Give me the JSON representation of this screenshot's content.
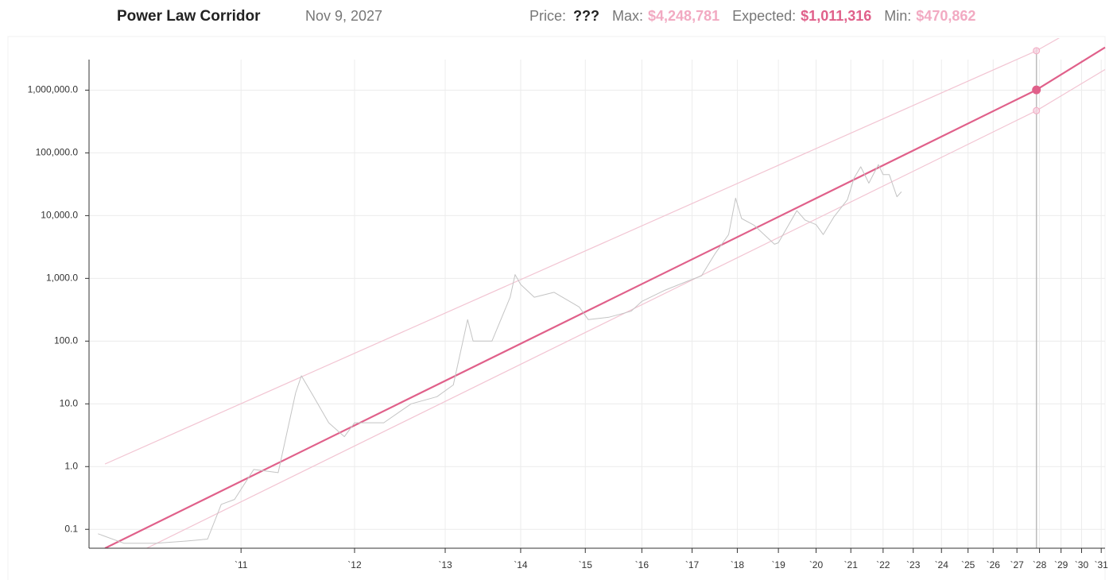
{
  "chart_data": {
    "type": "line",
    "title": "Power Law Corridor",
    "date": "Nov 9, 2027",
    "price_label": "Price:",
    "price": "???",
    "markers": {
      "x": 2027.86,
      "labels": [
        "Max:",
        "Expected:",
        "Min:"
      ],
      "values": [
        4248781,
        1011316,
        470862
      ],
      "value_labels": [
        "$4,248,781",
        "$1,011,316",
        "$470,862"
      ],
      "colors": [
        "#f2aac2",
        "#e0608a",
        "#f2aac2"
      ]
    },
    "xscale": "log-time",
    "yscale": "log",
    "grid": true,
    "xlim": [
      2010.0,
      2031.2
    ],
    "ylim": [
      0.05,
      5500000
    ],
    "xticks": [
      {
        "value": 2011,
        "label": "`11"
      },
      {
        "value": 2012,
        "label": "`12"
      },
      {
        "value": 2013,
        "label": "`13"
      },
      {
        "value": 2014,
        "label": "`14"
      },
      {
        "value": 2015,
        "label": "`15"
      },
      {
        "value": 2016,
        "label": "`16"
      },
      {
        "value": 2017,
        "label": "`17"
      },
      {
        "value": 2018,
        "label": "`18"
      },
      {
        "value": 2019,
        "label": "`19"
      },
      {
        "value": 2020,
        "label": "`20"
      },
      {
        "value": 2021,
        "label": "`21"
      },
      {
        "value": 2022,
        "label": "`22"
      },
      {
        "value": 2023,
        "label": "`23"
      },
      {
        "value": 2024,
        "label": "`24"
      },
      {
        "value": 2025,
        "label": "`25"
      },
      {
        "value": 2026,
        "label": "`26"
      },
      {
        "value": 2027,
        "label": "`27"
      },
      {
        "value": 2028,
        "label": "`28"
      },
      {
        "value": 2029,
        "label": "`29"
      },
      {
        "value": 2030,
        "label": "`30"
      },
      {
        "value": 2031,
        "label": "`31"
      }
    ],
    "yticks": [
      0.1,
      {
        "value": 1,
        "label": "1.0"
      },
      {
        "value": 10,
        "label": "10.0"
      },
      {
        "value": 100,
        "label": "100.0"
      },
      {
        "value": 1000,
        "label": "1,000.0"
      },
      {
        "value": 10000,
        "label": "10,000.0"
      },
      {
        "value": 100000,
        "label": "100,000.0"
      },
      {
        "value": 1000000,
        "label": "1,000,000.0"
      }
    ],
    "series": [
      {
        "color": "#f2c4d2",
        "width": 1.2,
        "x": [
          2010.09,
          2027.86,
          2031.2
        ],
        "values": [
          1.1,
          4248781,
          17600000
        ]
      },
      {
        "color": "#f2c4d2",
        "width": 1.2,
        "x": [
          2010.34,
          2027.86,
          2031.2
        ],
        "values": [
          0.05,
          470862,
          2130000
        ]
      },
      {
        "color": "#e0608a",
        "width": 2.2,
        "x": [
          2010.09,
          2027.86,
          2031.2
        ],
        "values": [
          0.05,
          1011316,
          4800000
        ]
      },
      {
        "color": "#c4c4c4",
        "width": 1,
        "x": [
          2010.05,
          2010.2,
          2010.4,
          2010.6,
          2010.75,
          2010.85,
          2010.95,
          2011.1,
          2011.3,
          2011.45,
          2011.5,
          2011.6,
          2011.75,
          2011.9,
          2012.0,
          2012.3,
          2012.6,
          2012.9,
          2013.1,
          2013.28,
          2013.35,
          2013.6,
          2013.85,
          2013.92,
          2014.0,
          2014.2,
          2014.5,
          2014.9,
          2015.05,
          2015.4,
          2015.8,
          2016.0,
          2016.45,
          2016.9,
          2017.2,
          2017.5,
          2017.8,
          2017.96,
          2018.1,
          2018.4,
          2018.9,
          2019.0,
          2019.48,
          2019.7,
          2020.0,
          2020.2,
          2020.5,
          2020.9,
          2021.1,
          2021.3,
          2021.55,
          2021.85,
          2022.0,
          2022.2,
          2022.45,
          2022.6
        ],
        "values": [
          0.085,
          0.06,
          0.06,
          0.065,
          0.07,
          0.25,
          0.3,
          0.9,
          0.8,
          15,
          28,
          14,
          5,
          3,
          5,
          5,
          10,
          13,
          20,
          220,
          100,
          100,
          500,
          1150,
          800,
          500,
          600,
          350,
          220,
          240,
          300,
          430,
          650,
          900,
          1100,
          2500,
          5000,
          19000,
          9000,
          7000,
          3500,
          3700,
          12000,
          8500,
          7200,
          5000,
          9500,
          18000,
          40000,
          60000,
          33000,
          65000,
          45000,
          45000,
          20000,
          24000
        ]
      }
    ]
  }
}
